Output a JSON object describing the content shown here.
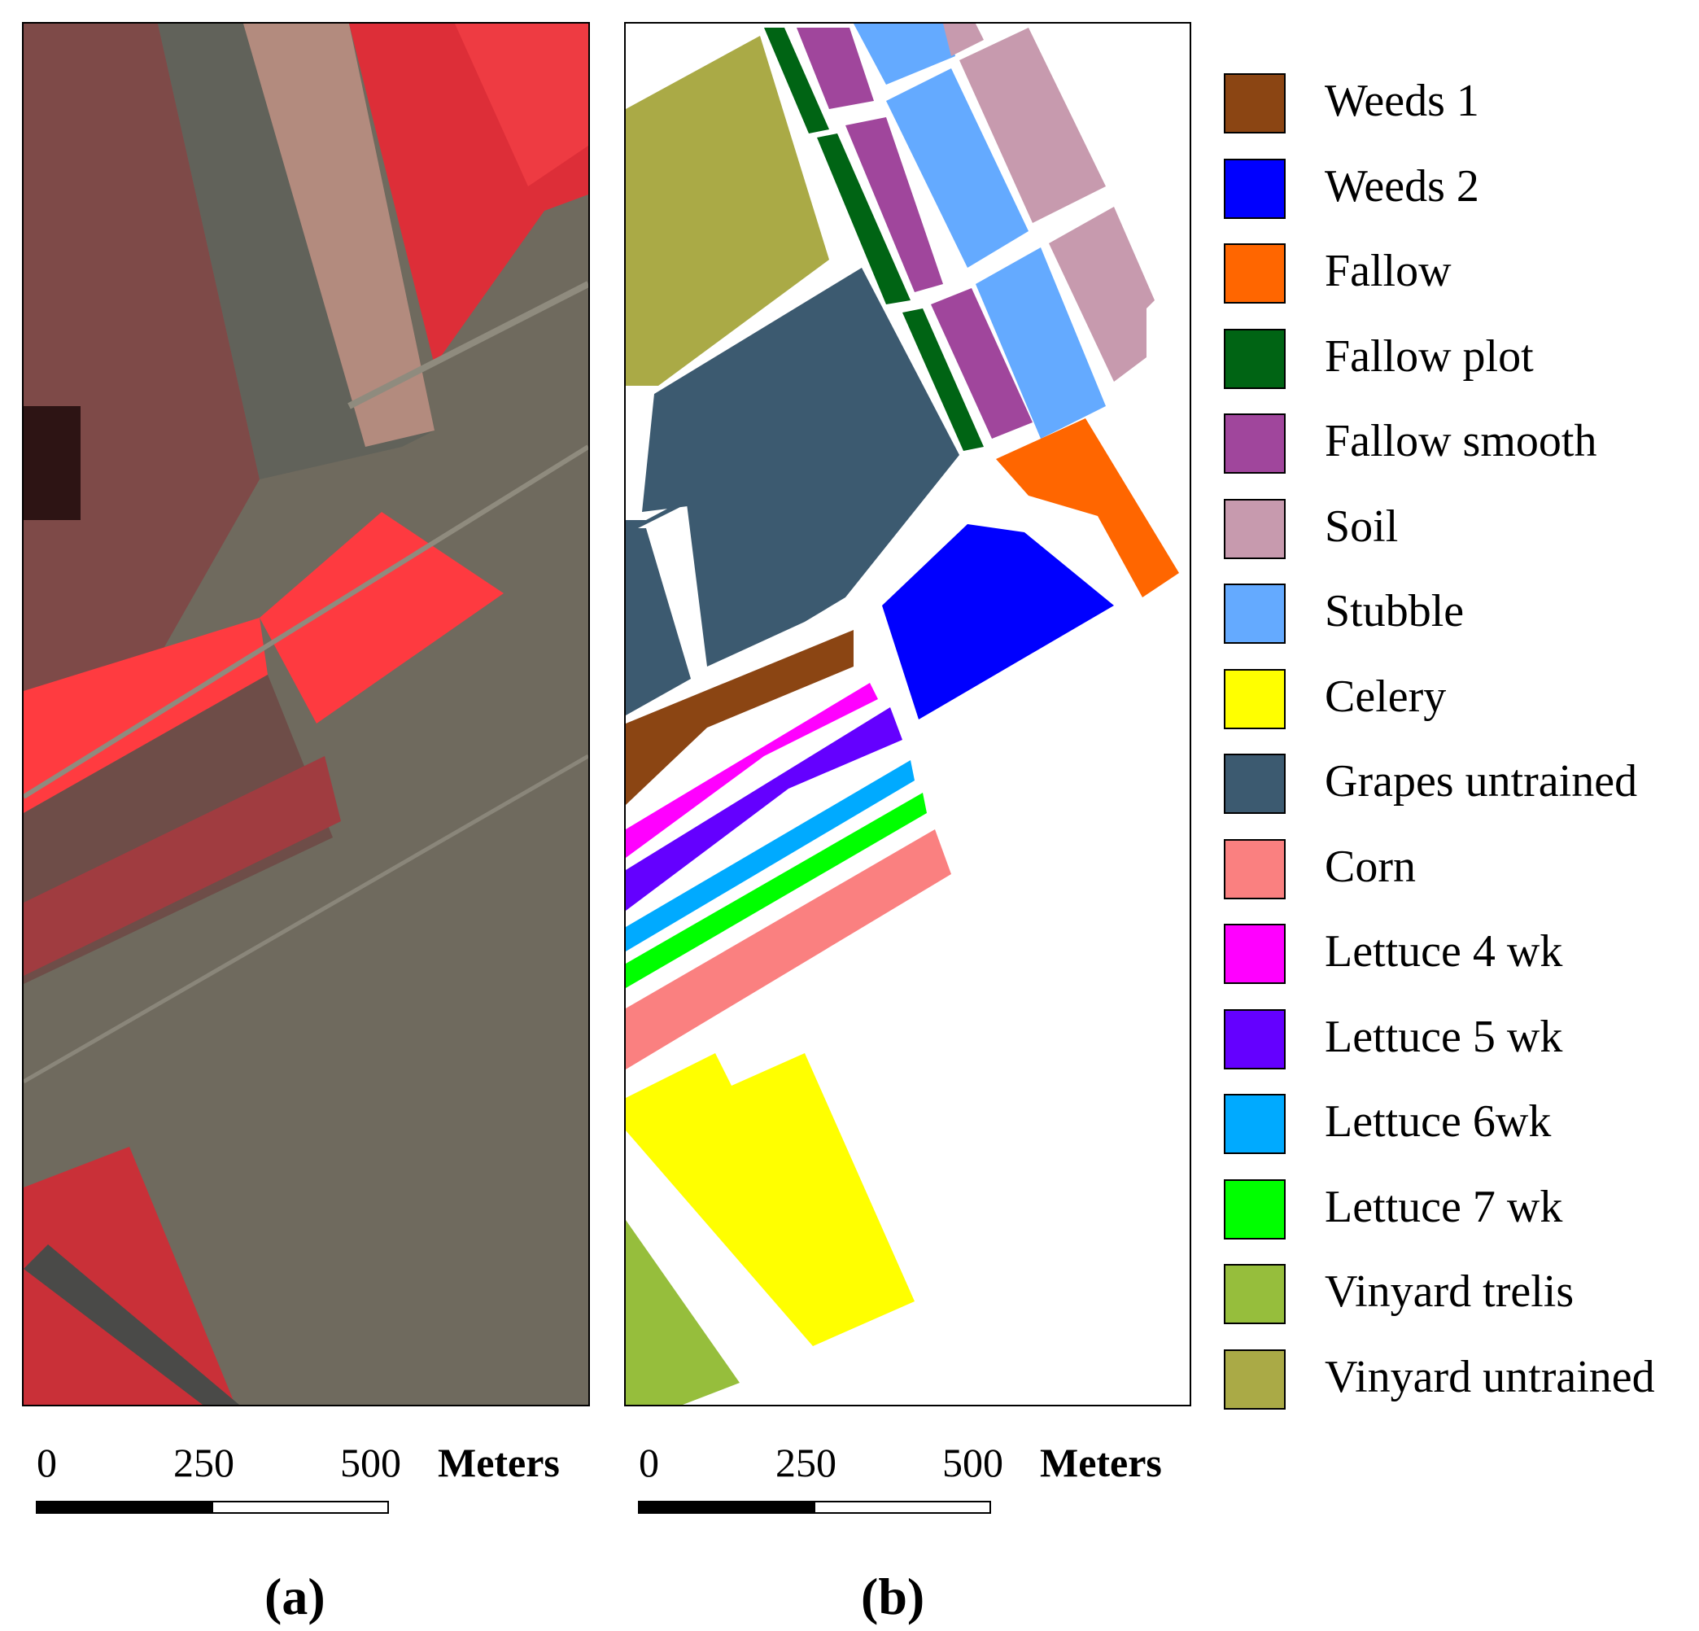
{
  "panel_a": {
    "scale_bar": {
      "ticks": [
        "0",
        "250",
        "500"
      ],
      "unit": "Meters"
    },
    "sublabel": "(a)"
  },
  "panel_b": {
    "scale_bar": {
      "ticks": [
        "0",
        "250",
        "500"
      ],
      "unit": "Meters"
    },
    "sublabel": "(b)"
  },
  "legend": {
    "items": [
      {
        "label": "Weeds 1",
        "color": "#8b4513"
      },
      {
        "label": "Weeds 2",
        "color": "#0000ff"
      },
      {
        "label": "Fallow",
        "color": "#ff6600"
      },
      {
        "label": "Fallow plot",
        "color": "#006414"
      },
      {
        "label": "Fallow smooth",
        "color": "#a0469c"
      },
      {
        "label": "Soil",
        "color": "#c79aae"
      },
      {
        "label": "Stubble",
        "color": "#64aaff"
      },
      {
        "label": "Celery",
        "color": "#ffff00"
      },
      {
        "label": "Grapes untrained",
        "color": "#3c5a70"
      },
      {
        "label": "Corn",
        "color": "#fa8080"
      },
      {
        "label": "Lettuce 4 wk",
        "color": "#ff00ff"
      },
      {
        "label": "Lettuce 5 wk",
        "color": "#6400ff"
      },
      {
        "label": "Lettuce 6wk",
        "color": "#00aaff"
      },
      {
        "label": "Lettuce 7 wk",
        "color": "#00ff00"
      },
      {
        "label": "Vinyard trelis",
        "color": "#96be3c"
      },
      {
        "label": "Vinyard untrained",
        "color": "#aaaa46"
      }
    ]
  }
}
